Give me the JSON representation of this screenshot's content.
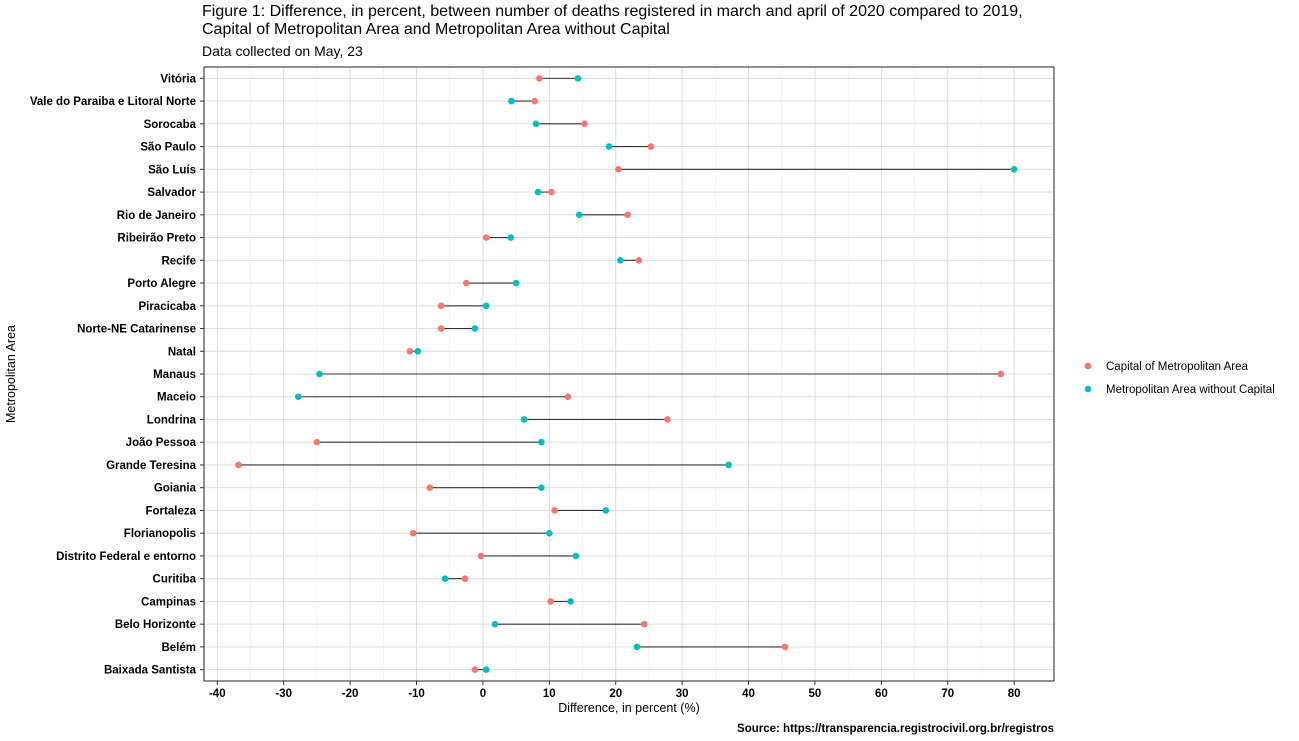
{
  "title_line1": "Figure 1: Difference, in percent, between number of deaths registered in march and april of 2020 compared to 2019,",
  "title_line2": "Capital of Metropolitan Area and Metropolitan Area without Capital",
  "subtitle": "Data collected on May, 23",
  "caption": "Source: https://transparencia.registrocivil.org.br/registros",
  "colors": {
    "capital": "#F8766D",
    "without_capital": "#00BFC4",
    "segment": "#333333",
    "grid": "#d9d9d9"
  },
  "chart_data": {
    "type": "dumbbell",
    "xlabel": "Difference, in percent (%)",
    "ylabel": "Metropolitan Area",
    "xlim": [
      -42,
      86
    ],
    "xticks": [
      -40,
      -30,
      -20,
      -10,
      0,
      10,
      20,
      30,
      40,
      50,
      60,
      70,
      80
    ],
    "grid": true,
    "legend_position": "right",
    "categories": [
      "Vitória",
      "Vale do Paraiba e Litoral Norte",
      "Sorocaba",
      "São Paulo",
      "São Luís",
      "Salvador",
      "Rio de Janeiro",
      "Ribeirão Preto",
      "Recife",
      "Porto Alegre",
      "Piracicaba",
      "Norte-NE Catarinense",
      "Natal",
      "Manaus",
      "Maceio",
      "Londrina",
      "João Pessoa",
      "Grande Teresina",
      "Goiania",
      "Fortaleza",
      "Florianopolis",
      "Distrito Federal e entorno",
      "Curitiba",
      "Campinas",
      "Belo Horizonte",
      "Belém",
      "Baixada Santista"
    ],
    "series": [
      {
        "name": "Capital of Metropolitan Area",
        "values": [
          8.5,
          7.8,
          15.3,
          25.3,
          20.4,
          10.3,
          21.8,
          0.5,
          23.5,
          -2.5,
          -6.3,
          -6.3,
          -11.0,
          78.0,
          12.8,
          27.8,
          -25.0,
          -36.8,
          -8.0,
          10.8,
          -10.5,
          -0.3,
          -2.7,
          10.2,
          24.3,
          45.5,
          -1.2
        ]
      },
      {
        "name": "Metropolitan Area without Capital",
        "values": [
          14.3,
          4.3,
          8.0,
          19.0,
          80.0,
          8.3,
          14.5,
          4.2,
          20.7,
          5.0,
          0.5,
          -1.2,
          -9.8,
          -24.6,
          -27.8,
          6.2,
          8.8,
          37.0,
          8.8,
          18.5,
          10.0,
          14.0,
          -5.7,
          13.2,
          1.8,
          23.2,
          0.5
        ]
      }
    ]
  }
}
